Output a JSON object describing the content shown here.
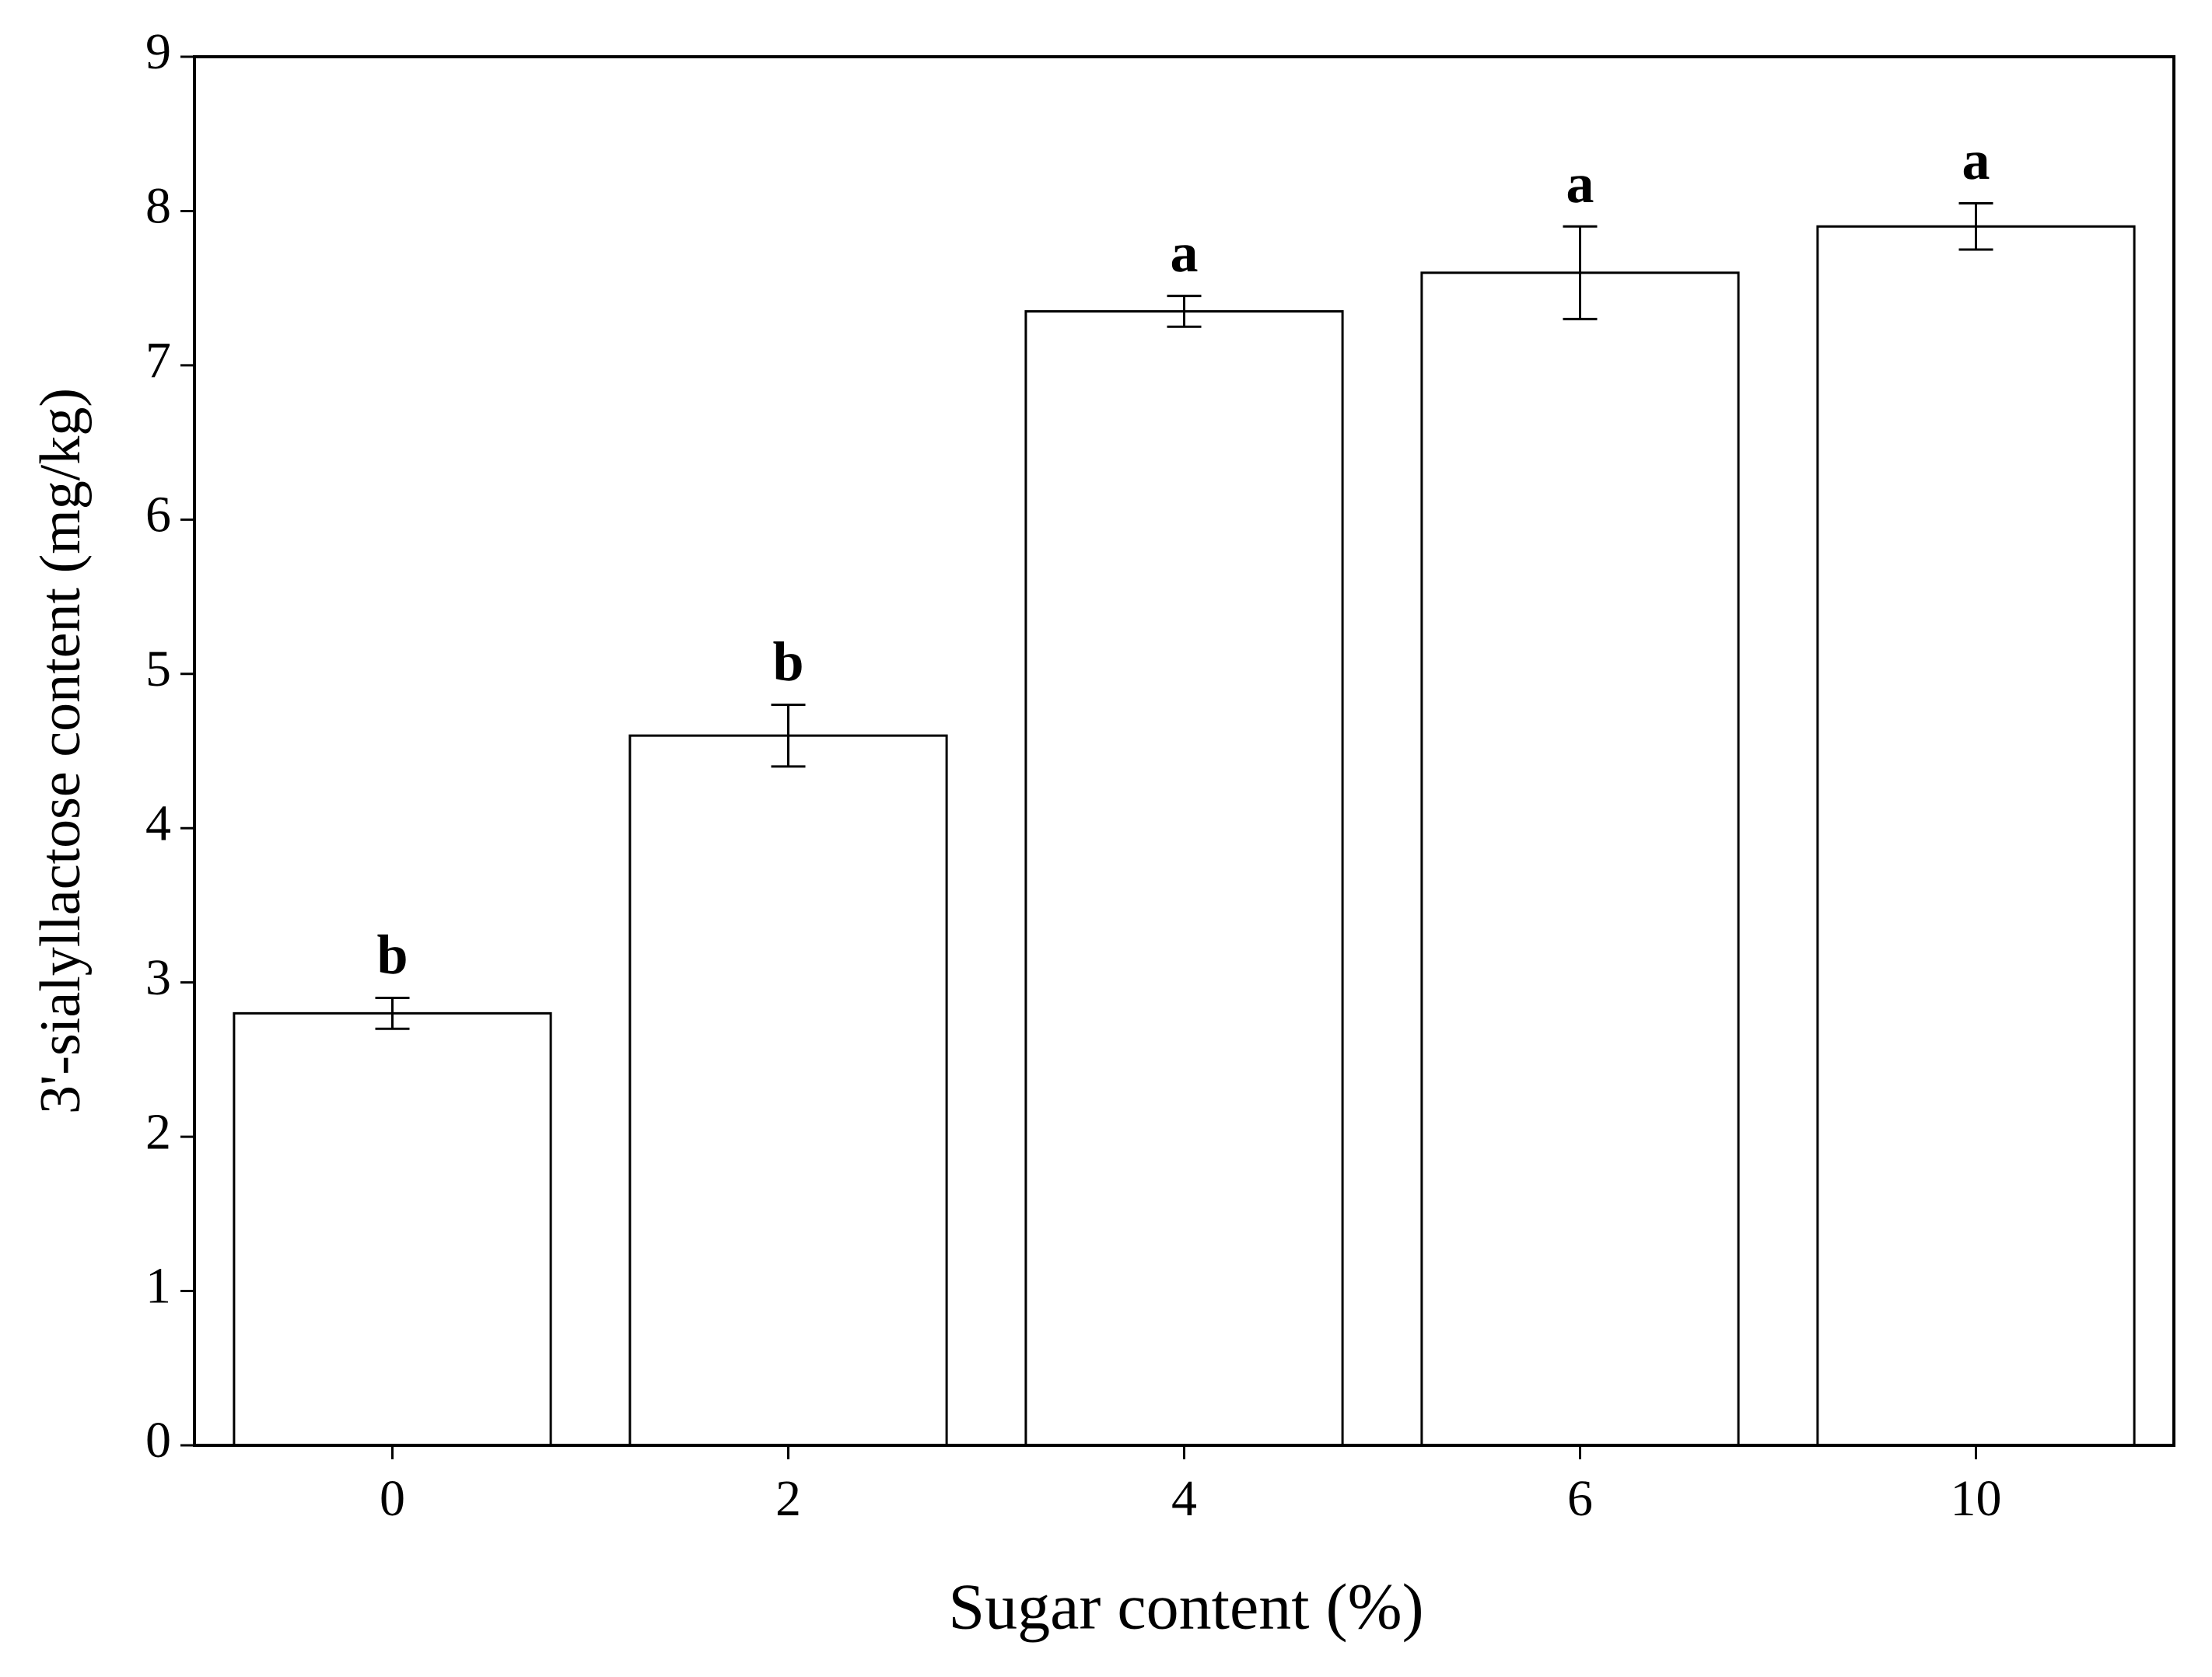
{
  "chart_data": {
    "type": "bar",
    "x_label": "Sugar content (%)",
    "y_label": "3'-sialyllactose content (mg/kg)",
    "categories": [
      "0",
      "2",
      "4",
      "6",
      "10"
    ],
    "values": [
      2.8,
      4.6,
      7.35,
      7.6,
      7.9
    ],
    "errors": [
      0.1,
      0.2,
      0.1,
      0.3,
      0.15
    ],
    "annotations": [
      "b",
      "b",
      "a",
      "a",
      "a"
    ],
    "color": "#ffffff",
    "ylim": [
      0,
      9
    ],
    "yticks": [
      0,
      1,
      2,
      3,
      4,
      5,
      6,
      7,
      8,
      9
    ]
  }
}
